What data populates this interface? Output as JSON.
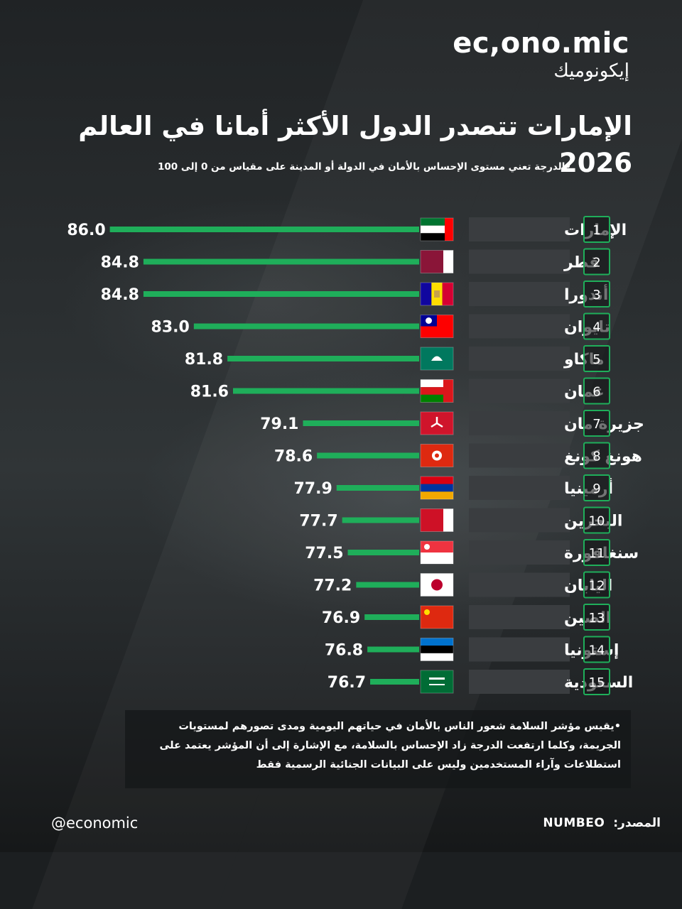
{
  "brand": {
    "latin": "ec,ono.mic",
    "arabic": "إيكونوميك"
  },
  "title": "الإمارات تتصدر الدول الأكثر أمانا في العالم 2026",
  "subtitle": "•الدرجة  تعني مستوى الإحساس بالأمان في الدولة أو المدينة على مقياس من 0 إلى 100",
  "chart_data": {
    "type": "bar",
    "orientation": "horizontal",
    "title": "الإمارات تتصدر الدول الأكثر أمانا في العالم 2026",
    "ranks": [
      "1",
      "2",
      "3",
      "4",
      "5",
      "6",
      "7",
      "8",
      "9",
      "10",
      "11",
      "12",
      "13",
      "14",
      "15"
    ],
    "categories": [
      "الإمارات",
      "قطر",
      "أندورا",
      "تايوان",
      "ماكاو",
      "عمان",
      "جزيرة مان",
      "هونغ كونغ",
      "أرمينيا",
      "البحرين",
      "سنغافورة",
      "اليابان",
      "الصين",
      "إستونيا",
      "السعودية"
    ],
    "values": [
      86.0,
      84.8,
      84.8,
      83.0,
      81.8,
      81.6,
      79.1,
      78.6,
      77.9,
      77.7,
      77.5,
      77.2,
      76.9,
      76.8,
      76.7
    ],
    "value_labels": [
      "86.0",
      "84.8",
      "84.8",
      "83.0",
      "81.8",
      "81.6",
      "79.1",
      "78.6",
      "77.9",
      "77.7",
      "77.5",
      "77.2",
      "76.9",
      "76.8",
      "76.7"
    ],
    "flags": [
      "uae-flag",
      "qatar-flag",
      "andorra-flag",
      "taiwan-flag",
      "macau-flag",
      "oman-flag",
      "isle-of-man-flag",
      "hong-kong-flag",
      "armenia-flag",
      "bahrain-flag",
      "singapore-flag",
      "japan-flag",
      "china-flag",
      "estonia-flag",
      "saudi-arabia-flag"
    ],
    "bar_color": "#1fae5a",
    "label_box_color": "#3a3d40",
    "rank_border_color": "#1fae5a",
    "grid": false,
    "legend": "none"
  },
  "footnote": "•يقيس مؤشر السلامة  شعور الناس بالأمان في حياتهم اليومية ومدى تصورهم لمستويات الجريمة، وكلما ارتفعت الدرجة زاد الإحساس بالسلامة، مع الإشارة إلى أن المؤشر يعتمد على استطلاعات وآراء المستخدمين وليس على البيانات الجنائية الرسمية فقط",
  "footer": {
    "handle": "@economic",
    "source_label": "المصدر:",
    "source_name": "NUMBEO"
  }
}
